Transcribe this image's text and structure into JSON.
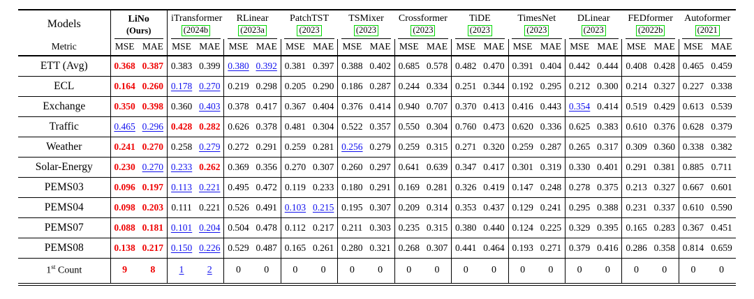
{
  "colors": {
    "best": "#ee0000",
    "second": "#1010ee",
    "citation_box": "#00d800"
  },
  "table": {
    "corner_models_label": "Models",
    "corner_metric_label": "Metric",
    "metric_labels": [
      "MSE",
      "MAE"
    ],
    "models": [
      {
        "name": "LiNo",
        "year": "(Ours)",
        "bold": true,
        "boxed": false
      },
      {
        "name": "iTransformer",
        "year": "(2024b",
        "bold": false,
        "boxed": true
      },
      {
        "name": "RLinear",
        "year": "(2023a",
        "bold": false,
        "boxed": true
      },
      {
        "name": "PatchTST",
        "year": "(2023",
        "bold": false,
        "boxed": true
      },
      {
        "name": "TSMixer",
        "year": "(2023",
        "bold": false,
        "boxed": true
      },
      {
        "name": "Crossformer",
        "year": "(2023",
        "bold": false,
        "boxed": true
      },
      {
        "name": "TiDE",
        "year": "(2023",
        "bold": false,
        "boxed": true
      },
      {
        "name": "TimesNet",
        "year": "(2023",
        "bold": false,
        "boxed": true
      },
      {
        "name": "DLinear",
        "year": "(2023",
        "bold": false,
        "boxed": true
      },
      {
        "name": "FEDformer",
        "year": "(2022b",
        "bold": false,
        "boxed": true
      },
      {
        "name": "Autoformer",
        "year": "(2021",
        "bold": false,
        "boxed": true
      }
    ],
    "rows": [
      {
        "dataset": "ETT (Avg)",
        "values": [
          "0.368",
          "0.387",
          "0.383",
          "0.399",
          "0.380",
          "0.392",
          "0.381",
          "0.397",
          "0.388",
          "0.402",
          "0.685",
          "0.578",
          "0.482",
          "0.470",
          "0.391",
          "0.404",
          "0.442",
          "0.444",
          "0.408",
          "0.428",
          "0.465",
          "0.459"
        ],
        "styles": [
          "best",
          "best",
          "",
          "",
          "second",
          "second",
          "",
          "",
          "",
          "",
          "",
          "",
          "",
          "",
          "",
          "",
          "",
          "",
          "",
          "",
          "",
          ""
        ]
      },
      {
        "dataset": "ECL",
        "values": [
          "0.164",
          "0.260",
          "0.178",
          "0.270",
          "0.219",
          "0.298",
          "0.205",
          "0.290",
          "0.186",
          "0.287",
          "0.244",
          "0.334",
          "0.251",
          "0.344",
          "0.192",
          "0.295",
          "0.212",
          "0.300",
          "0.214",
          "0.327",
          "0.227",
          "0.338"
        ],
        "styles": [
          "best",
          "best",
          "second",
          "second",
          "",
          "",
          "",
          "",
          "",
          "",
          "",
          "",
          "",
          "",
          "",
          "",
          "",
          "",
          "",
          "",
          "",
          ""
        ]
      },
      {
        "dataset": "Exchange",
        "values": [
          "0.350",
          "0.398",
          "0.360",
          "0.403",
          "0.378",
          "0.417",
          "0.367",
          "0.404",
          "0.376",
          "0.414",
          "0.940",
          "0.707",
          "0.370",
          "0.413",
          "0.416",
          "0.443",
          "0.354",
          "0.414",
          "0.519",
          "0.429",
          "0.613",
          "0.539"
        ],
        "styles": [
          "best",
          "best",
          "",
          "second",
          "",
          "",
          "",
          "",
          "",
          "",
          "",
          "",
          "",
          "",
          "",
          "",
          "second",
          "",
          "",
          "",
          "",
          ""
        ]
      },
      {
        "dataset": "Traffic",
        "values": [
          "0.465",
          "0.296",
          "0.428",
          "0.282",
          "0.626",
          "0.378",
          "0.481",
          "0.304",
          "0.522",
          "0.357",
          "0.550",
          "0.304",
          "0.760",
          "0.473",
          "0.620",
          "0.336",
          "0.625",
          "0.383",
          "0.610",
          "0.376",
          "0.628",
          "0.379"
        ],
        "styles": [
          "second",
          "second",
          "best",
          "best",
          "",
          "",
          "",
          "",
          "",
          "",
          "",
          "",
          "",
          "",
          "",
          "",
          "",
          "",
          "",
          "",
          "",
          ""
        ]
      },
      {
        "dataset": "Weather",
        "values": [
          "0.241",
          "0.270",
          "0.258",
          "0.279",
          "0.272",
          "0.291",
          "0.259",
          "0.281",
          "0.256",
          "0.279",
          "0.259",
          "0.315",
          "0.271",
          "0.320",
          "0.259",
          "0.287",
          "0.265",
          "0.317",
          "0.309",
          "0.360",
          "0.338",
          "0.382"
        ],
        "styles": [
          "best",
          "best",
          "",
          "second",
          "",
          "",
          "",
          "",
          "second",
          "",
          "",
          "",
          "",
          "",
          "",
          "",
          "",
          "",
          "",
          "",
          "",
          ""
        ]
      },
      {
        "dataset": "Solar-Energy",
        "values": [
          "0.230",
          "0.270",
          "0.233",
          "0.262",
          "0.369",
          "0.356",
          "0.270",
          "0.307",
          "0.260",
          "0.297",
          "0.641",
          "0.639",
          "0.347",
          "0.417",
          "0.301",
          "0.319",
          "0.330",
          "0.401",
          "0.291",
          "0.381",
          "0.885",
          "0.711"
        ],
        "styles": [
          "best",
          "second",
          "second",
          "best",
          "",
          "",
          "",
          "",
          "",
          "",
          "",
          "",
          "",
          "",
          "",
          "",
          "",
          "",
          "",
          "",
          "",
          ""
        ]
      },
      {
        "dataset": "PEMS03",
        "values": [
          "0.096",
          "0.197",
          "0.113",
          "0.221",
          "0.495",
          "0.472",
          "0.119",
          "0.233",
          "0.180",
          "0.291",
          "0.169",
          "0.281",
          "0.326",
          "0.419",
          "0.147",
          "0.248",
          "0.278",
          "0.375",
          "0.213",
          "0.327",
          "0.667",
          "0.601"
        ],
        "styles": [
          "best",
          "best",
          "second",
          "second",
          "",
          "",
          "",
          "",
          "",
          "",
          "",
          "",
          "",
          "",
          "",
          "",
          "",
          "",
          "",
          "",
          "",
          ""
        ]
      },
      {
        "dataset": "PEMS04",
        "values": [
          "0.098",
          "0.203",
          "0.111",
          "0.221",
          "0.526",
          "0.491",
          "0.103",
          "0.215",
          "0.195",
          "0.307",
          "0.209",
          "0.314",
          "0.353",
          "0.437",
          "0.129",
          "0.241",
          "0.295",
          "0.388",
          "0.231",
          "0.337",
          "0.610",
          "0.590"
        ],
        "styles": [
          "best",
          "best",
          "",
          "",
          "",
          "",
          "second",
          "second",
          "",
          "",
          "",
          "",
          "",
          "",
          "",
          "",
          "",
          "",
          "",
          "",
          "",
          ""
        ]
      },
      {
        "dataset": "PEMS07",
        "values": [
          "0.088",
          "0.181",
          "0.101",
          "0.204",
          "0.504",
          "0.478",
          "0.112",
          "0.217",
          "0.211",
          "0.303",
          "0.235",
          "0.315",
          "0.380",
          "0.440",
          "0.124",
          "0.225",
          "0.329",
          "0.395",
          "0.165",
          "0.283",
          "0.367",
          "0.451"
        ],
        "styles": [
          "best",
          "best",
          "second",
          "second",
          "",
          "",
          "",
          "",
          "",
          "",
          "",
          "",
          "",
          "",
          "",
          "",
          "",
          "",
          "",
          "",
          "",
          ""
        ]
      },
      {
        "dataset": "PEMS08",
        "values": [
          "0.138",
          "0.217",
          "0.150",
          "0.226",
          "0.529",
          "0.487",
          "0.165",
          "0.261",
          "0.280",
          "0.321",
          "0.268",
          "0.307",
          "0.441",
          "0.464",
          "0.193",
          "0.271",
          "0.379",
          "0.416",
          "0.286",
          "0.358",
          "0.814",
          "0.659"
        ],
        "styles": [
          "best",
          "best",
          "second",
          "second",
          "",
          "",
          "",
          "",
          "",
          "",
          "",
          "",
          "",
          "",
          "",
          "",
          "",
          "",
          "",
          "",
          "",
          ""
        ]
      }
    ],
    "count_row": {
      "label": {
        "pre": "1",
        "sup": "st",
        "post": " Count"
      },
      "values": [
        "9",
        "8",
        "1",
        "2",
        "0",
        "0",
        "0",
        "0",
        "0",
        "0",
        "0",
        "0",
        "0",
        "0",
        "0",
        "0",
        "0",
        "0",
        "0",
        "0",
        "0",
        "0"
      ],
      "styles": [
        "best",
        "best",
        "second",
        "second",
        "",
        "",
        "",
        "",
        "",
        "",
        "",
        "",
        "",
        "",
        "",
        "",
        "",
        "",
        "",
        "",
        "",
        ""
      ]
    }
  }
}
